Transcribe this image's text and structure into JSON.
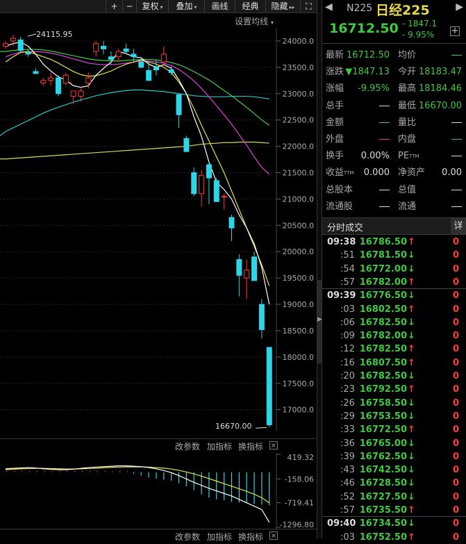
{
  "toolbar": {
    "plus": "+",
    "minus": "−",
    "fuquan": "复权",
    "diejia": "叠加",
    "huaxian": "画线",
    "jingdian": "经典",
    "yincang": "隐藏",
    "more": "▸▸",
    "fullscreen": "⛶"
  },
  "chart": {
    "setting_label": "设置均线",
    "high_label": "24115.95",
    "low_label": "16670.00",
    "y_ticks": [
      "24000.0",
      "23500.0",
      "23000.0",
      "22500.0",
      "22000.0",
      "21500.0",
      "21000.0",
      "20500.0",
      "20000.0",
      "19500.0",
      "19000.0",
      "18500.0",
      "18000.0",
      "17500.0",
      "17000.0"
    ],
    "colors": {
      "up": "#ff3b3b",
      "down": "#2cd6e6",
      "ma5": "#ffffff",
      "ma10": "#e6e64a",
      "ma20": "#e040e0",
      "ma30": "#40d040",
      "ma60": "#2cc7c7",
      "ma120": "#d8d860"
    }
  },
  "chart_data": {
    "type": "candlestick",
    "ylim": [
      16600,
      24250
    ],
    "candles": [
      {
        "o": 23900,
        "h": 24000,
        "l": 23850,
        "c": 23950
      },
      {
        "o": 24000,
        "h": 24115.95,
        "l": 23900,
        "c": 24050
      },
      {
        "o": 24020,
        "h": 24080,
        "l": 23780,
        "c": 23820
      },
      {
        "o": 23780,
        "h": 23850,
        "l": 23700,
        "c": 23750
      },
      {
        "o": 23420,
        "h": 23480,
        "l": 23380,
        "c": 23380
      },
      {
        "o": 23200,
        "h": 23300,
        "l": 23150,
        "c": 23250
      },
      {
        "o": 23250,
        "h": 23400,
        "l": 23150,
        "c": 23300
      },
      {
        "o": 23300,
        "h": 23350,
        "l": 22950,
        "c": 23000
      },
      {
        "o": 23200,
        "h": 23400,
        "l": 23150,
        "c": 23350
      },
      {
        "o": 22950,
        "h": 23050,
        "l": 22800,
        "c": 23050
      },
      {
        "o": 22950,
        "h": 23100,
        "l": 22850,
        "c": 23050
      },
      {
        "o": 23200,
        "h": 23400,
        "l": 23100,
        "c": 23300
      },
      {
        "o": 23800,
        "h": 24000,
        "l": 23700,
        "c": 23950
      },
      {
        "o": 23900,
        "h": 24000,
        "l": 23750,
        "c": 23850
      },
      {
        "o": 23700,
        "h": 23800,
        "l": 23550,
        "c": 23650
      },
      {
        "o": 23700,
        "h": 23850,
        "l": 23600,
        "c": 23800
      },
      {
        "o": 23850,
        "h": 23950,
        "l": 23750,
        "c": 23800
      },
      {
        "o": 23750,
        "h": 23850,
        "l": 23600,
        "c": 23700
      },
      {
        "o": 23600,
        "h": 23700,
        "l": 23480,
        "c": 23500
      },
      {
        "o": 23440,
        "h": 23600,
        "l": 23250,
        "c": 23250
      },
      {
        "o": 23500,
        "h": 23650,
        "l": 23350,
        "c": 23450
      },
      {
        "o": 23600,
        "h": 23900,
        "l": 23550,
        "c": 23750
      },
      {
        "o": 23450,
        "h": 23520,
        "l": 23350,
        "c": 23400
      },
      {
        "o": 22980,
        "h": 23000,
        "l": 22350,
        "c": 22600
      },
      {
        "o": 22150,
        "h": 22200,
        "l": 21900,
        "c": 21900
      },
      {
        "o": 21500,
        "h": 21600,
        "l": 21050,
        "c": 21100
      },
      {
        "o": 21100,
        "h": 21550,
        "l": 20850,
        "c": 21450
      },
      {
        "o": 21650,
        "h": 21700,
        "l": 20900,
        "c": 21400
      },
      {
        "o": 21350,
        "h": 21400,
        "l": 20950,
        "c": 20950
      },
      {
        "o": 21050,
        "h": 21100,
        "l": 20800,
        "c": 21050
      },
      {
        "o": 20650,
        "h": 20700,
        "l": 20200,
        "c": 20450
      },
      {
        "o": 19850,
        "h": 19950,
        "l": 19150,
        "c": 19550
      },
      {
        "o": 19500,
        "h": 19850,
        "l": 19100,
        "c": 19650
      },
      {
        "o": 19900,
        "h": 20000,
        "l": 19450,
        "c": 19450
      },
      {
        "o": 19000,
        "h": 19100,
        "l": 18350,
        "c": 18520
      },
      {
        "o": 18183.47,
        "h": 18184.46,
        "l": 16670,
        "c": 16712.5
      }
    ],
    "ma5": [
      23900,
      23950,
      23980,
      23900,
      23750,
      23560,
      23430,
      23320,
      23260,
      23150,
      23120,
      23150,
      23350,
      23480,
      23600,
      23800,
      23760,
      23700,
      23680,
      23560,
      23500,
      23550,
      23480,
      23260,
      23000,
      22560,
      22190,
      21700,
      21320,
      21180,
      21000,
      20700,
      20450,
      20150,
      19700,
      19000
    ],
    "ma10": [
      23600,
      23700,
      23780,
      23800,
      23750,
      23700,
      23650,
      23580,
      23500,
      23420,
      23360,
      23330,
      23340,
      23380,
      23430,
      23500,
      23560,
      23600,
      23640,
      23600,
      23560,
      23500,
      23400,
      23220,
      23000,
      22720,
      22400,
      22100,
      21800,
      21500,
      21150,
      20800,
      20450,
      20100,
      19750,
      19350
    ],
    "ma20": [
      23700,
      23750,
      23790,
      23800,
      23800,
      23790,
      23770,
      23740,
      23700,
      23660,
      23620,
      23580,
      23560,
      23550,
      23550,
      23560,
      23580,
      23600,
      23620,
      23620,
      23600,
      23580,
      23530,
      23460,
      23360,
      23240,
      23100,
      22940,
      22770,
      22600,
      22420,
      22220,
      22020,
      21800,
      21600,
      21470
    ],
    "ma30": [
      23800,
      23820,
      23830,
      23840,
      23840,
      23830,
      23810,
      23780,
      23750,
      23720,
      23690,
      23660,
      23640,
      23630,
      23620,
      23620,
      23630,
      23640,
      23650,
      23650,
      23640,
      23620,
      23590,
      23550,
      23490,
      23420,
      23340,
      23260,
      23160,
      23060,
      22960,
      22850,
      22740,
      22620,
      22500,
      22400
    ],
    "ma60": [
      22280,
      22350,
      22420,
      22490,
      22560,
      22630,
      22690,
      22740,
      22790,
      22840,
      22880,
      22920,
      22960,
      22990,
      23020,
      23040,
      23060,
      23070,
      23070,
      23060,
      23050,
      23040,
      23020,
      23000,
      22980,
      22960,
      22950,
      22940,
      22940,
      22940,
      22950,
      22950,
      22950,
      22940,
      22920,
      22900
    ],
    "ma120": [
      21760,
      21770,
      21780,
      21790,
      21800,
      21810,
      21820,
      21830,
      21840,
      21850,
      21860,
      21870,
      21880,
      21890,
      21900,
      21910,
      21920,
      21930,
      21940,
      21950,
      21960,
      21970,
      21980,
      21990,
      22000,
      22020,
      22040,
      22050,
      22060,
      22070,
      22070,
      22080,
      22080,
      22080,
      22070,
      22060
    ],
    "macd": {
      "ylim": [
        -1296.8,
        419.32
      ],
      "y_ticks": [
        "419.32",
        "-158.06",
        "-719.41",
        "-1296.80"
      ],
      "hist_start_index": 17,
      "hist": [
        -40,
        -80,
        -120,
        -150,
        -180,
        -200,
        -260,
        -330,
        -420,
        -520,
        -600,
        -640,
        -660,
        -700,
        -720,
        -720,
        -750,
        -760,
        -780
      ],
      "dif": [
        80,
        90,
        100,
        110,
        100,
        80,
        70,
        60,
        60,
        70,
        90,
        110,
        120,
        130,
        140,
        150,
        150,
        140,
        130,
        110,
        80,
        40,
        -10,
        -80,
        -160,
        -240,
        -310,
        -380,
        -440,
        -500,
        -560,
        -640,
        -720,
        -800,
        -880,
        -1180
      ],
      "dea": [
        60,
        70,
        80,
        85,
        90,
        90,
        85,
        80,
        75,
        75,
        80,
        85,
        95,
        105,
        115,
        120,
        125,
        125,
        125,
        120,
        110,
        95,
        75,
        45,
        5,
        -40,
        -95,
        -150,
        -210,
        -270,
        -330,
        -390,
        -450,
        -520,
        -600,
        -720
      ]
    }
  },
  "indicator_bar": {
    "params": "改参数",
    "add": "加指标",
    "swap": "换指标",
    "close": "×"
  },
  "quote": {
    "code": "N225",
    "name": "日经225",
    "price": "16712.50",
    "change": "- 1847.1",
    "change_pct": "- 9.95%",
    "add": "+",
    "rows": [
      {
        "l1": "最新",
        "v1": "16712.50",
        "c1": "grn",
        "l2": "均价",
        "v2": "—",
        "c2": "grn"
      },
      {
        "l1": "涨跌",
        "v1": "▼1847.13",
        "c1": "grn",
        "l2": "今开",
        "v2": "18183.47",
        "c2": "grn"
      },
      {
        "l1": "涨幅",
        "v1": "-9.95%",
        "c1": "grn",
        "l2": "最高",
        "v2": "18184.46",
        "c2": "grn"
      },
      {
        "l1": "总手",
        "v1": "—",
        "c1": "wht",
        "l2": "最低",
        "v2": "16670.00",
        "c2": "grn"
      },
      {
        "l1": "金额",
        "v1": "—",
        "c1": "cya",
        "l2": "量比",
        "v2": "—",
        "c2": "wht"
      },
      {
        "l1": "外盘",
        "v1": "—",
        "c1": "red",
        "l2": "内盘",
        "v2": "—",
        "c2": "grn"
      },
      {
        "l1": "换手",
        "v1": "0.00%",
        "c1": "wht",
        "l2": "PE",
        "l2sup": "TTM",
        "v2": "—",
        "c2": "wht"
      },
      {
        "l1": "收益",
        "l1sup": "TTM",
        "v1": "0.000",
        "c1": "wht",
        "l2": "净资产",
        "v2": "0.00",
        "c2": "wht"
      },
      {
        "l1": "总股本",
        "v1": "—",
        "c1": "wht",
        "l2": "总值",
        "v2": "—",
        "c2": "wht"
      },
      {
        "l1": "流通股",
        "v1": "—",
        "c1": "wht",
        "l2": "流通",
        "v2": "—",
        "c2": "wht"
      }
    ]
  },
  "trades": {
    "title": "分时成交",
    "more": "详",
    "items": [
      {
        "time": "09:38",
        "full": true,
        "price": "16786.50",
        "dir": "up",
        "vol": "0"
      },
      {
        "time": ":51",
        "full": false,
        "price": "16781.50",
        "dir": "down",
        "vol": "0"
      },
      {
        "time": ":54",
        "full": false,
        "price": "16772.00",
        "dir": "down",
        "vol": "0"
      },
      {
        "time": ":57",
        "full": false,
        "price": "16782.00",
        "dir": "up",
        "vol": "0"
      },
      {
        "time": "09:39",
        "full": true,
        "price": "16776.50",
        "dir": "down",
        "vol": "0",
        "sep": true
      },
      {
        "time": ":03",
        "full": false,
        "price": "16802.50",
        "dir": "up",
        "vol": "0"
      },
      {
        "time": ":06",
        "full": false,
        "price": "16782.50",
        "dir": "down",
        "vol": "0"
      },
      {
        "time": ":09",
        "full": false,
        "price": "16782.00",
        "dir": "down",
        "vol": "0"
      },
      {
        "time": ":12",
        "full": false,
        "price": "16782.50",
        "dir": "up",
        "vol": "0"
      },
      {
        "time": ":16",
        "full": false,
        "price": "16807.50",
        "dir": "up",
        "vol": "0"
      },
      {
        "time": ":20",
        "full": false,
        "price": "16782.50",
        "dir": "down",
        "vol": "0"
      },
      {
        "time": ":23",
        "full": false,
        "price": "16792.50",
        "dir": "up",
        "vol": "0"
      },
      {
        "time": ":26",
        "full": false,
        "price": "16758.50",
        "dir": "down",
        "vol": "0"
      },
      {
        "time": ":29",
        "full": false,
        "price": "16753.50",
        "dir": "down",
        "vol": "0"
      },
      {
        "time": ":33",
        "full": false,
        "price": "16772.50",
        "dir": "up",
        "vol": "0"
      },
      {
        "time": ":36",
        "full": false,
        "price": "16765.00",
        "dir": "down",
        "vol": "0"
      },
      {
        "time": ":39",
        "full": false,
        "price": "16762.50",
        "dir": "down",
        "vol": "0"
      },
      {
        "time": ":43",
        "full": false,
        "price": "16742.50",
        "dir": "down",
        "vol": "0"
      },
      {
        "time": ":46",
        "full": false,
        "price": "16728.50",
        "dir": "down",
        "vol": "0"
      },
      {
        "time": ":52",
        "full": false,
        "price": "16727.50",
        "dir": "down",
        "vol": "0"
      },
      {
        "time": ":57",
        "full": false,
        "price": "16735.50",
        "dir": "up",
        "vol": "0"
      },
      {
        "time": "09:40",
        "full": true,
        "price": "16734.50",
        "dir": "down",
        "vol": "0",
        "sep": true
      },
      {
        "time": ":03",
        "full": false,
        "price": "16752.50",
        "dir": "up",
        "vol": "0"
      }
    ]
  }
}
